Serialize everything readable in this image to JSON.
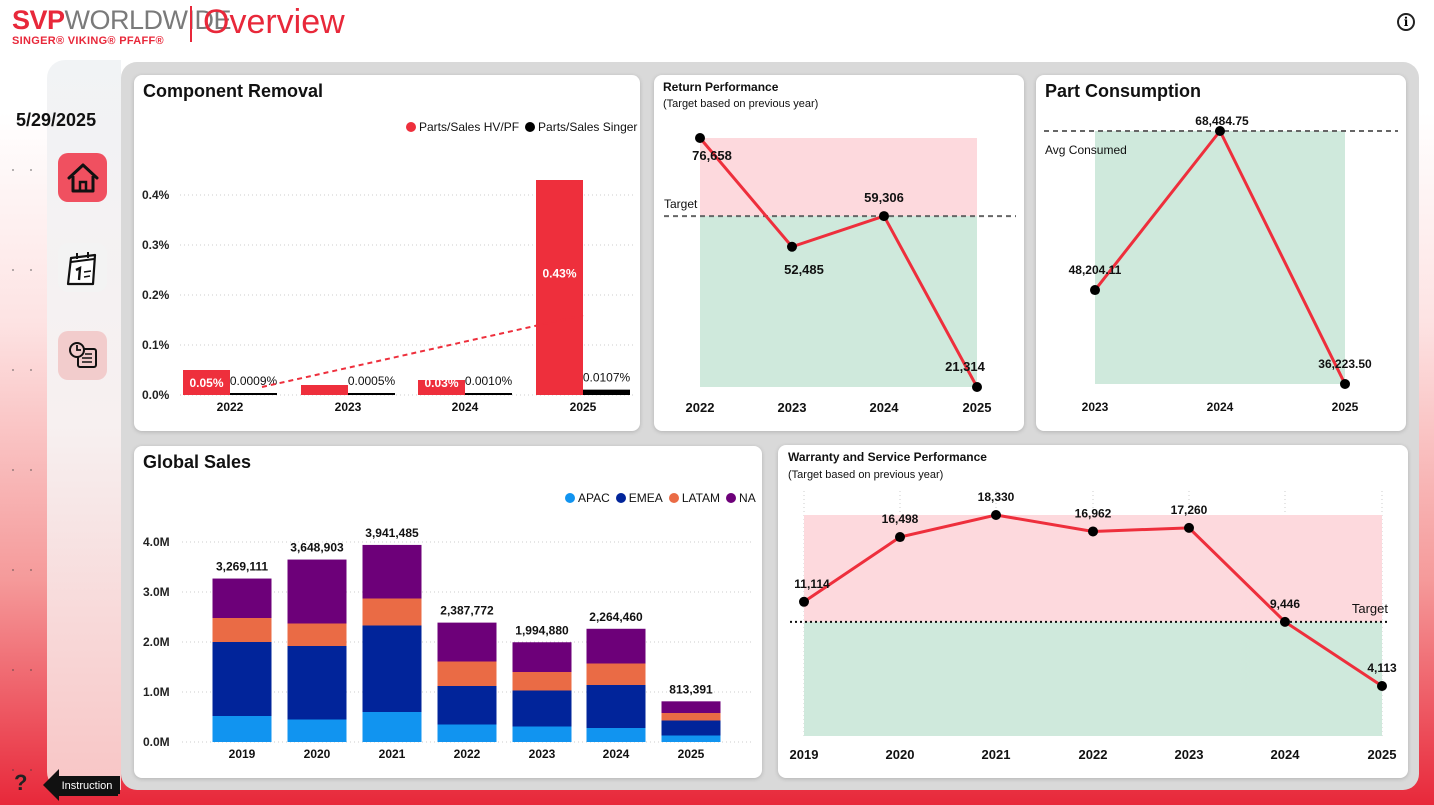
{
  "header": {
    "logo_svp": "SVP",
    "logo_worldwide": "WORLDWIDE",
    "logo_brands": "SINGER® VIKING® PFAFF®",
    "title": "Overview",
    "info_icon": "info-icon"
  },
  "sidebar": {
    "date": "5/29/2025",
    "nav": [
      {
        "icon": "home-icon"
      },
      {
        "icon": "calendar-icon"
      },
      {
        "icon": "dashboard-icon"
      }
    ],
    "help_icon": "question-icon",
    "instruction_label": "Instruction"
  },
  "colors": {
    "accent": "#e8283a",
    "hvpf": "#ee2f3c",
    "singer": "#000000",
    "apac": "#1194f0",
    "emea": "#01249a",
    "latam": "#ea6b45",
    "na": "#6d0079",
    "band_red": "#fdd9dd",
    "band_green": "#cfe9dc"
  },
  "chart_data": [
    {
      "id": "component_removal",
      "type": "bar",
      "title": "Component Removal",
      "categories": [
        "2022",
        "2023",
        "2024",
        "2025"
      ],
      "series": [
        {
          "name": "Parts/Sales HV/PF",
          "values": [
            0.05,
            0.02,
            0.03,
            0.43
          ],
          "labels": [
            "0.05%",
            "",
            "0.03%",
            "0.43%"
          ]
        },
        {
          "name": "Parts/Sales Singer",
          "values": [
            0.0009,
            0.0005,
            0.001,
            0.0107
          ],
          "labels": [
            "0.0009%",
            "0.0005%",
            "0.0010%",
            "0.0107%"
          ]
        }
      ],
      "yticks": [
        "0.0%",
        "0.1%",
        "0.2%",
        "0.3%",
        "0.4%"
      ],
      "ylim": [
        0,
        0.5
      ],
      "trendline": true,
      "legend": "top-right"
    },
    {
      "id": "return_performance",
      "type": "line",
      "title": "Return Performance",
      "subtitle": "(Target based on previous year)",
      "x": [
        "2022",
        "2023",
        "2024",
        "2025"
      ],
      "values": [
        76658,
        52485,
        59306,
        21314
      ],
      "labels": [
        "76,658",
        "52,485",
        "59,306",
        "21,314"
      ],
      "target": 59306,
      "target_label": "Target",
      "ylim": [
        21314,
        76658
      ]
    },
    {
      "id": "part_consumption",
      "type": "line",
      "title": "Part Consumption",
      "x": [
        "2023",
        "2024",
        "2025"
      ],
      "values": [
        48204.11,
        68484.75,
        36223.5
      ],
      "labels": [
        "48,204.11",
        "68,484.75",
        "36,223.50"
      ],
      "avg_label": "Avg Consumed",
      "ylim": [
        36223.5,
        68484.75
      ]
    },
    {
      "id": "global_sales",
      "type": "bar",
      "stacked": true,
      "title": "Global Sales",
      "categories": [
        "2019",
        "2020",
        "2021",
        "2022",
        "2023",
        "2024",
        "2025"
      ],
      "series": [
        {
          "name": "APAC",
          "values": [
            520000,
            450000,
            600000,
            350000,
            310000,
            280000,
            130000
          ]
        },
        {
          "name": "EMEA",
          "values": [
            1480000,
            1470000,
            1730000,
            770000,
            720000,
            860000,
            300000
          ]
        },
        {
          "name": "LATAM",
          "values": [
            480000,
            450000,
            540000,
            490000,
            370000,
            430000,
            150000
          ]
        },
        {
          "name": "NA",
          "values": [
            789111,
            1278903,
            1071485,
            777772,
            594880,
            694460,
            233391
          ]
        }
      ],
      "totals": [
        "3,269,111",
        "3,648,903",
        "3,941,485",
        "2,387,772",
        "1,994,880",
        "2,264,460",
        "813,391"
      ],
      "yticks": [
        "0.0M",
        "1.0M",
        "2.0M",
        "3.0M",
        "4.0M"
      ],
      "ylim": [
        0,
        4000000
      ],
      "legend": "top-right"
    },
    {
      "id": "warranty_service",
      "type": "line",
      "title": "Warranty and Service Performance",
      "subtitle": "(Target based on previous year)",
      "x": [
        "2019",
        "2020",
        "2021",
        "2022",
        "2023",
        "2024",
        "2025"
      ],
      "values": [
        11114,
        16498,
        18330,
        16962,
        17260,
        9446,
        4113
      ],
      "labels": [
        "11,114",
        "16,498",
        "18,330",
        "16,962",
        "17,260",
        "9,446",
        "4,113"
      ],
      "target": 9446,
      "target_label": "Target",
      "ylim": [
        4113,
        18330
      ]
    }
  ]
}
